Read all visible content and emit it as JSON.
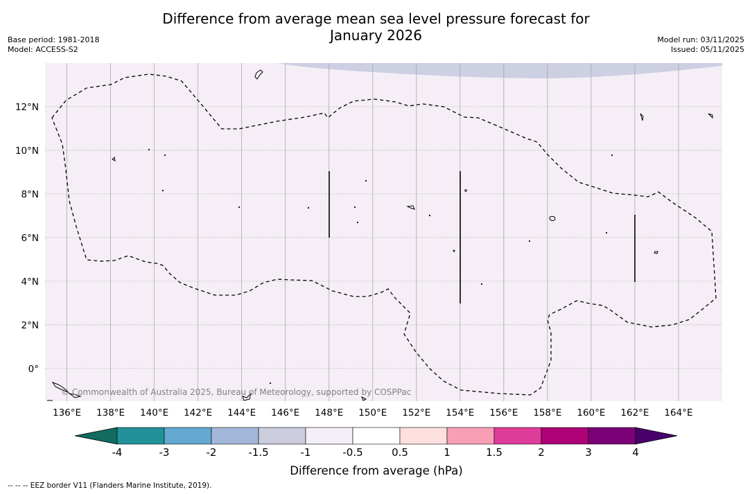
{
  "title_line1": "Difference from average mean sea level pressure forecast for",
  "title_line2": "January 2026",
  "base_period": "Base period: 1981-2018",
  "model": "Model: ACCESS-S2",
  "model_run": "Model run: 03/11/2025",
  "issued": "Issued: 05/11/2025",
  "copyright": "© Commonwealth of Australia 2025, Bureau of Meteorology, supported by COSPPac",
  "footnote": "--  --  -- EEZ border V11 (Flanders Marine Institute, 2019).",
  "map": {
    "lon_range": [
      135.0,
      166.0
    ],
    "lat_range": [
      -1.5,
      14.0
    ],
    "lon_ticks": [
      "136°E",
      "138°E",
      "140°E",
      "142°E",
      "144°E",
      "146°E",
      "148°E",
      "150°E",
      "152°E",
      "154°E",
      "156°E",
      "158°E",
      "160°E",
      "162°E",
      "164°E"
    ],
    "lat_ticks": [
      "12°N",
      "10°N",
      "8°N",
      "6°N",
      "4°N",
      "2°N",
      "0°"
    ],
    "background_color": "#f5eef6",
    "anomaly_region_color": "#cdcfe3"
  },
  "colorbar": {
    "label": "Difference from average (hPa)",
    "tick_labels": [
      "-4",
      "-3",
      "-2",
      "-1.5",
      "-1",
      "-0.5",
      "0.5",
      "1",
      "1.5",
      "2",
      "3",
      "4"
    ],
    "colors": [
      "#126b60",
      "#22929a",
      "#64a9d2",
      "#a3b8d9",
      "#ccccdf",
      "#f4eef6",
      "#ffffff",
      "#fde0de",
      "#f89fb6",
      "#df3b98",
      "#ad0177",
      "#7a0177",
      "#49006a"
    ]
  }
}
